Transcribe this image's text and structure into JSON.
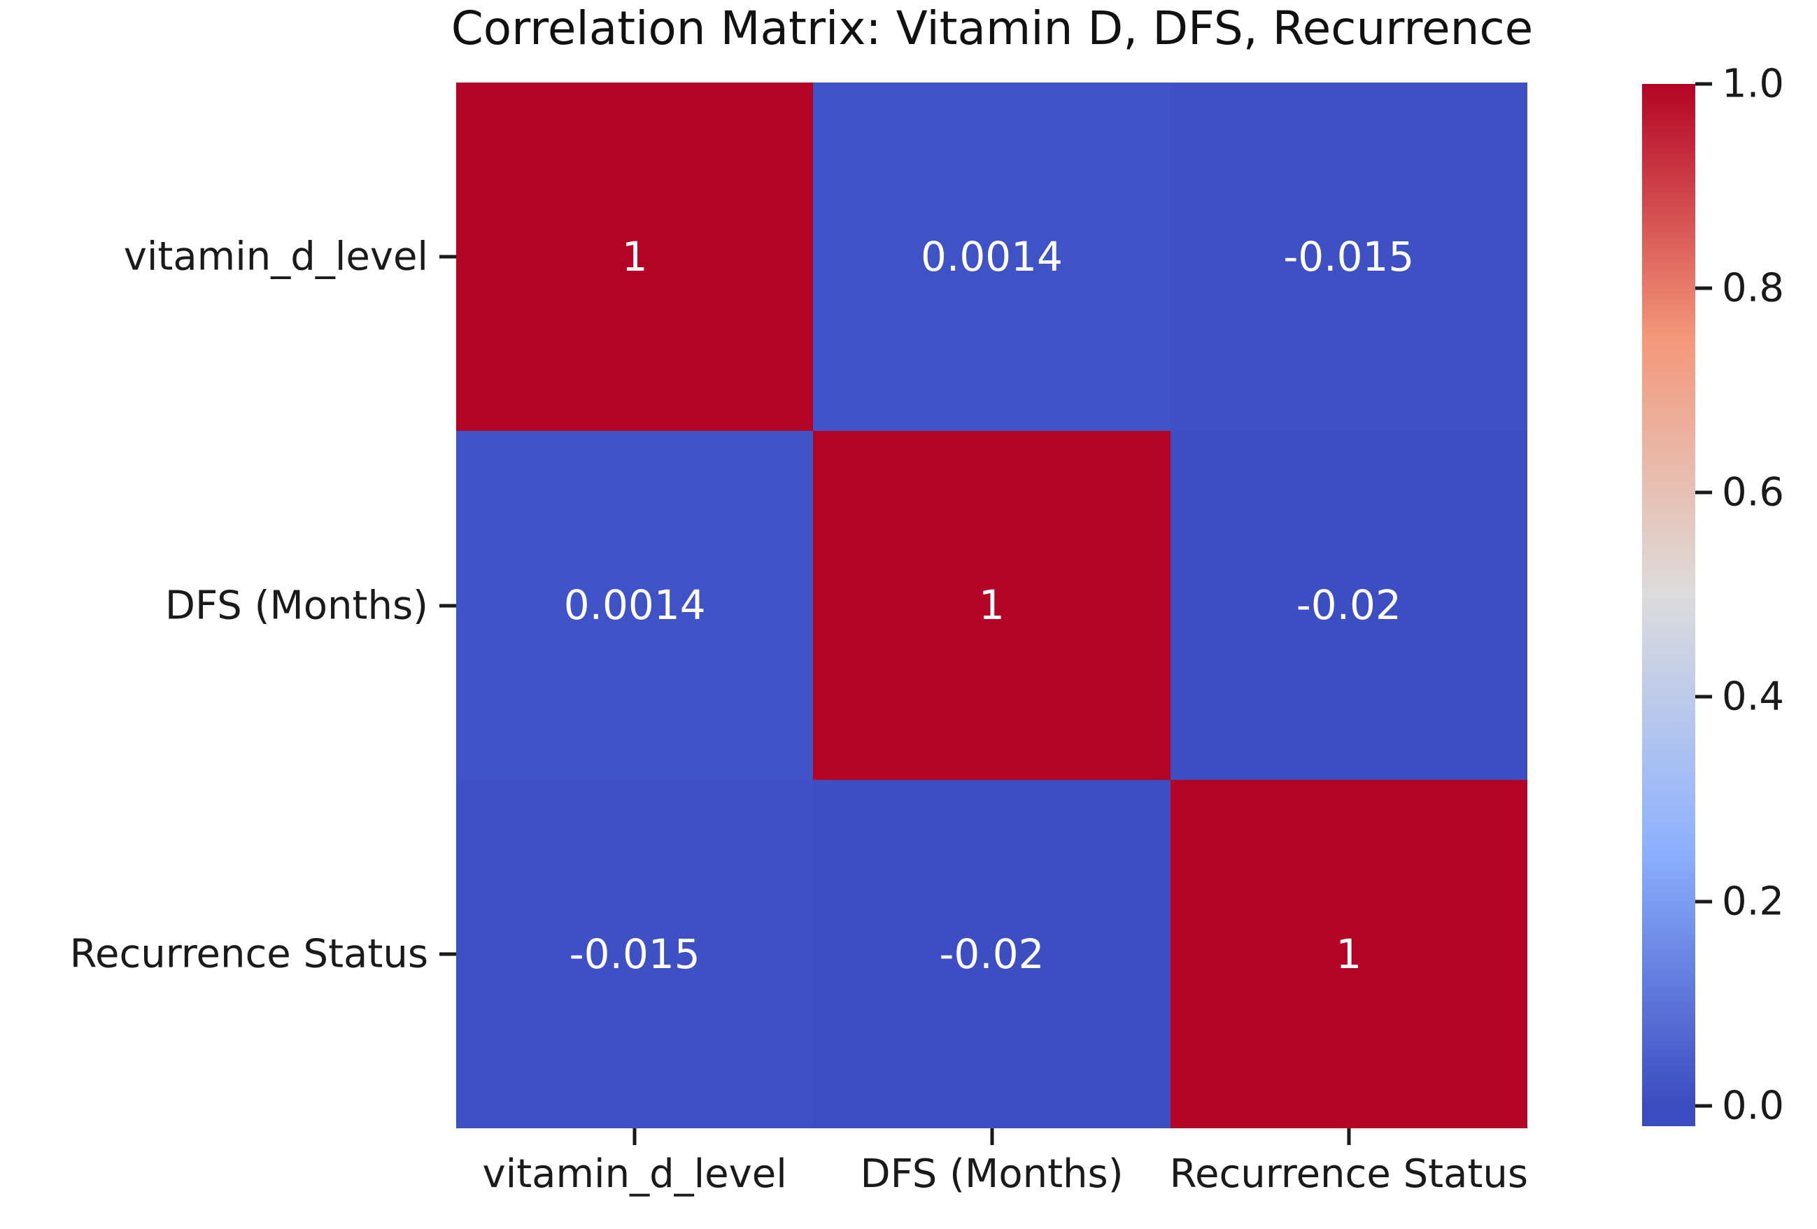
{
  "figure": {
    "background": "#ffffff"
  },
  "chart_data": {
    "type": "heatmap",
    "title": "Correlation Matrix: Vitamin D, DFS, Recurrence",
    "x_tick_labels": [
      "vitamin_d_level",
      "DFS (Months)",
      "Recurrence Status"
    ],
    "y_tick_labels": [
      "vitamin_d_level",
      "DFS (Months)",
      "Recurrence Status"
    ],
    "matrix": [
      [
        1,
        0.0014,
        -0.015
      ],
      [
        0.0014,
        1,
        -0.02
      ],
      [
        -0.015,
        -0.02,
        1
      ]
    ],
    "cell_labels": [
      [
        "1",
        "0.0014",
        "-0.015"
      ],
      [
        "0.0014",
        "1",
        "-0.02"
      ],
      [
        "-0.015",
        "-0.02",
        "1"
      ]
    ],
    "cell_colors": [
      [
        "#b40426",
        "#4053c6",
        "#3e50c3"
      ],
      [
        "#4053c6",
        "#b40426",
        "#3d4ec2"
      ],
      [
        "#3e50c3",
        "#3d4ec2",
        "#b40426"
      ]
    ],
    "annotation_text_color": "#ffffff",
    "colormap": "coolwarm",
    "vmin": -0.02,
    "vmax": 1.0,
    "grid": false,
    "colorbar": {
      "position": "right",
      "tick_labels": [
        "1.0",
        "0.8",
        "0.6",
        "0.4",
        "0.2",
        "0.0"
      ],
      "tick_values": [
        1.0,
        0.8,
        0.6,
        0.4,
        0.2,
        0.0
      ],
      "gradient_stops": [
        {
          "pos": 0.0,
          "color": "#b40426"
        },
        {
          "pos": 0.245,
          "color": "#f4987a"
        },
        {
          "pos": 0.49,
          "color": "#dddcdc"
        },
        {
          "pos": 0.735,
          "color": "#8db0fe"
        },
        {
          "pos": 0.98,
          "color": "#3b4cc0"
        },
        {
          "pos": 1.0,
          "color": "#3b4cc0"
        }
      ]
    },
    "axis_color": "#1a1a1a"
  }
}
